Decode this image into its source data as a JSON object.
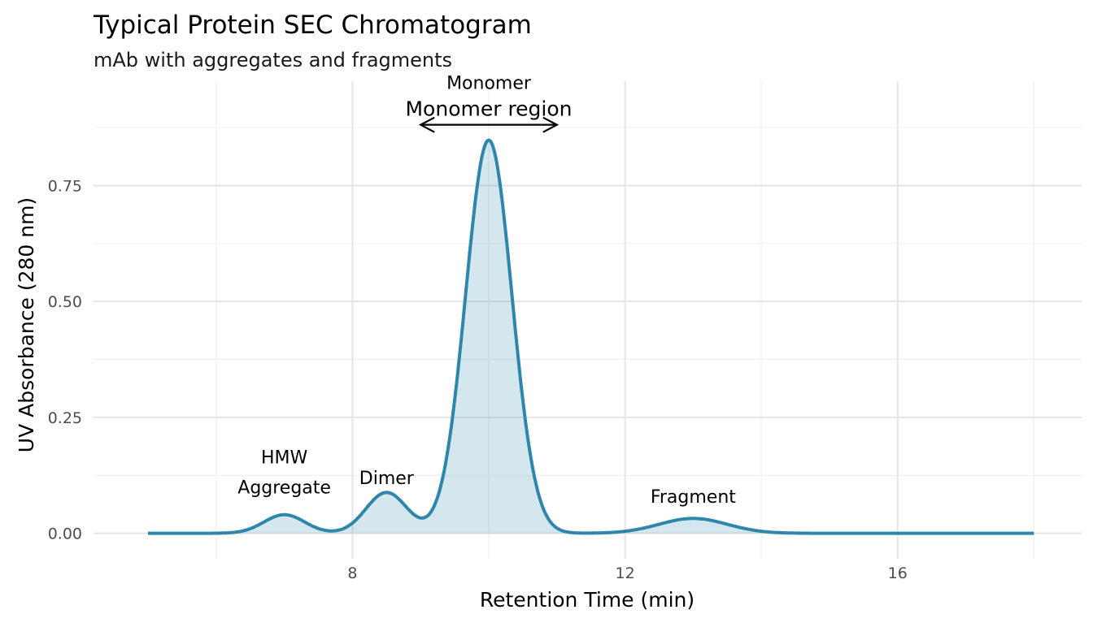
{
  "chart_data": {
    "type": "area",
    "title": "Typical Protein SEC Chromatogram",
    "subtitle": "mAb with aggregates and fragments",
    "xlabel": "Retention Time (min)",
    "ylabel": "UV Absorbance (280 nm)",
    "xlim": [
      4.2,
      18.7
    ],
    "ylim": [
      -0.055,
      0.975
    ],
    "x_range": [
      5,
      18
    ],
    "x_ticks": [
      8,
      12,
      16
    ],
    "x_tick_labels": [
      "8",
      "12",
      "16"
    ],
    "x_minor": [
      6,
      10,
      14,
      18
    ],
    "y_ticks": [
      0,
      0.25,
      0.5,
      0.75
    ],
    "y_tick_labels": [
      "0.00",
      "0.25",
      "0.50",
      "0.75"
    ],
    "y_minor": [
      0.125,
      0.375,
      0.625,
      0.875
    ],
    "grid": true,
    "line_color": "#2e86ab",
    "fill_color": "#2e86ab",
    "peaks": [
      {
        "name": "HMW Aggregate",
        "center": 7.0,
        "height": 0.04,
        "sigma": 0.3
      },
      {
        "name": "Dimer",
        "center": 8.5,
        "height": 0.088,
        "sigma": 0.3
      },
      {
        "name": "Monomer",
        "center": 10.0,
        "height": 0.848,
        "sigma": 0.34
      },
      {
        "name": "Fragment",
        "center": 13.0,
        "height": 0.032,
        "sigma": 0.5
      }
    ],
    "annotations": [
      {
        "text": "HMW",
        "x": 7.0,
        "y": 0.165
      },
      {
        "text": "Aggregate",
        "x": 7.0,
        "y": 0.1
      },
      {
        "text": "Dimer",
        "x": 8.5,
        "y": 0.12
      },
      {
        "text": "Monomer",
        "x": 10.0,
        "y": 0.93
      },
      {
        "text": "Fragment",
        "x": 13.0,
        "y": 0.08
      },
      {
        "text": "Monomer region",
        "x": 10.0,
        "y": 0.915
      }
    ],
    "arrow": {
      "x_start": 9.0,
      "x_end": 11.0,
      "y": 0.881,
      "both_ends": true
    }
  }
}
